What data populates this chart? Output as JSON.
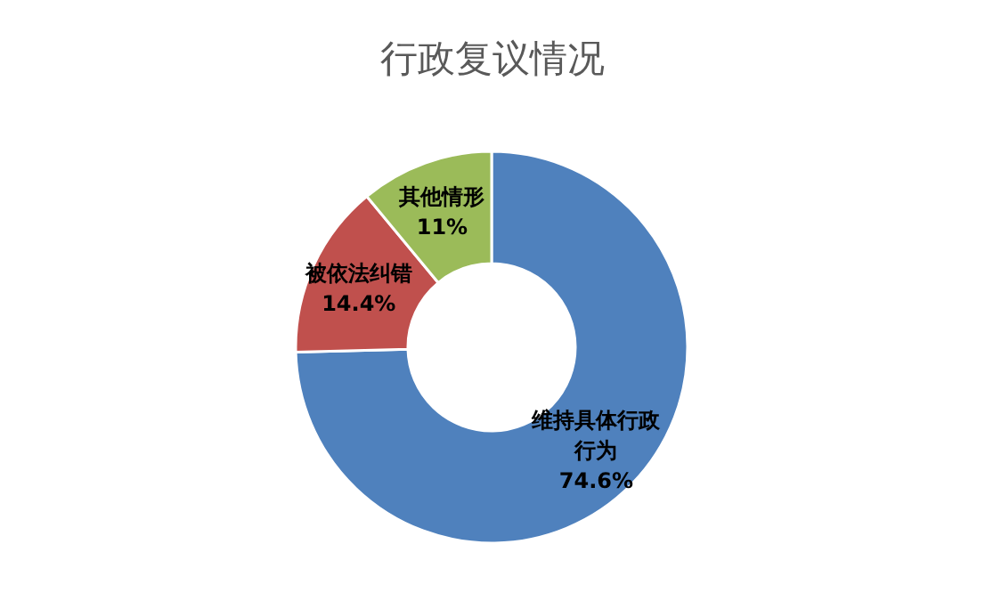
{
  "chart_data": {
    "type": "donut",
    "title": "行政复议情况",
    "categories": [
      "维持具体行政行为",
      "被依法纠错",
      "其他情形"
    ],
    "values": [
      74.6,
      14.4,
      11
    ],
    "colors": [
      "#4f81bd",
      "#c0504d",
      "#9bbb59"
    ],
    "value_labels": [
      "74.6%",
      "14.4%",
      "11%"
    ],
    "legend": false
  }
}
